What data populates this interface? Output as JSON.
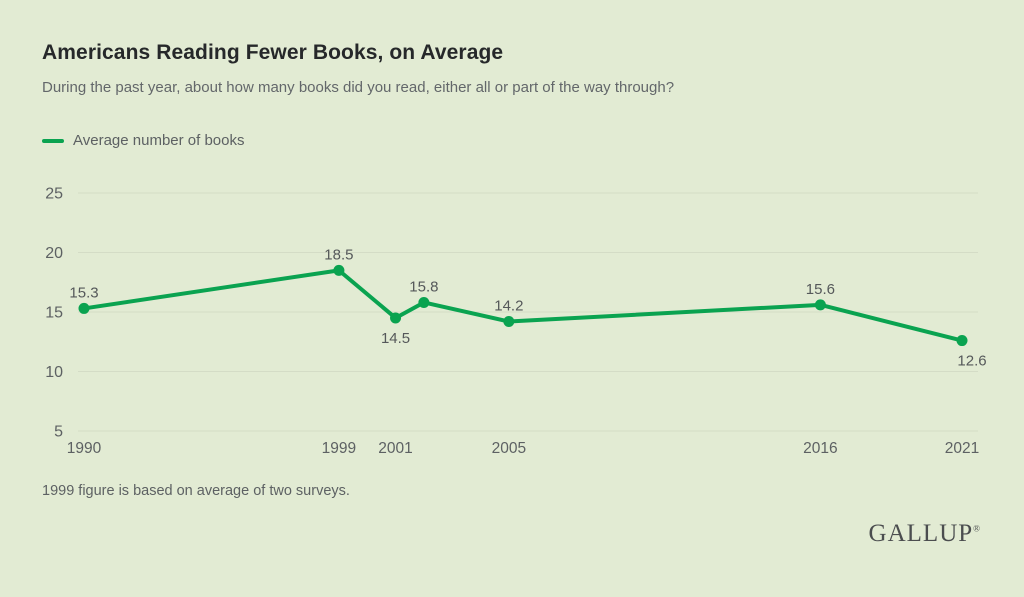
{
  "header": {
    "title": "Americans Reading Fewer Books, on Average",
    "subtitle": "During the past year, about how many books did you read, either all or part of the way through?"
  },
  "legend": {
    "label": "Average number of books"
  },
  "footnote": "1999 figure is based on average of two surveys.",
  "branding": {
    "logo_text": "GALLUP",
    "registered_mark": "®"
  },
  "colors": {
    "background": "#e2ebd3",
    "line": "#0aa350",
    "grid": "#d4dcc6",
    "tick_text": "#5d6163",
    "point_label_text": "#55585a"
  },
  "chart_data": {
    "type": "line",
    "title": "Americans Reading Fewer Books, on Average",
    "subtitle": "During the past year, about how many books did you read, either all or part of the way through?",
    "xlabel": "",
    "ylabel": "",
    "xlim": [
      1990,
      2021
    ],
    "ylim": [
      5,
      25
    ],
    "grid": true,
    "legend_position": "top-left",
    "legend_entries": [
      "Average number of books"
    ],
    "y_ticks": [
      25,
      20,
      15,
      10,
      5
    ],
    "x_ticks": [
      1990,
      1999,
      2001,
      2005,
      2016,
      2021
    ],
    "series": [
      {
        "name": "Average number of books",
        "points": [
          {
            "x": 1990,
            "y": 15.3,
            "label": "15.3",
            "label_pos": "above"
          },
          {
            "x": 1999,
            "y": 18.5,
            "label": "18.5",
            "label_pos": "above"
          },
          {
            "x": 2001,
            "y": 14.5,
            "label": "14.5",
            "label_pos": "below"
          },
          {
            "x": 2002,
            "y": 15.8,
            "label": "15.8",
            "label_pos": "above"
          },
          {
            "x": 2005,
            "y": 14.2,
            "label": "14.2",
            "label_pos": "above"
          },
          {
            "x": 2016,
            "y": 15.6,
            "label": "15.6",
            "label_pos": "above"
          },
          {
            "x": 2021,
            "y": 12.6,
            "label": "12.6",
            "label_pos": "below-right"
          }
        ]
      }
    ]
  }
}
